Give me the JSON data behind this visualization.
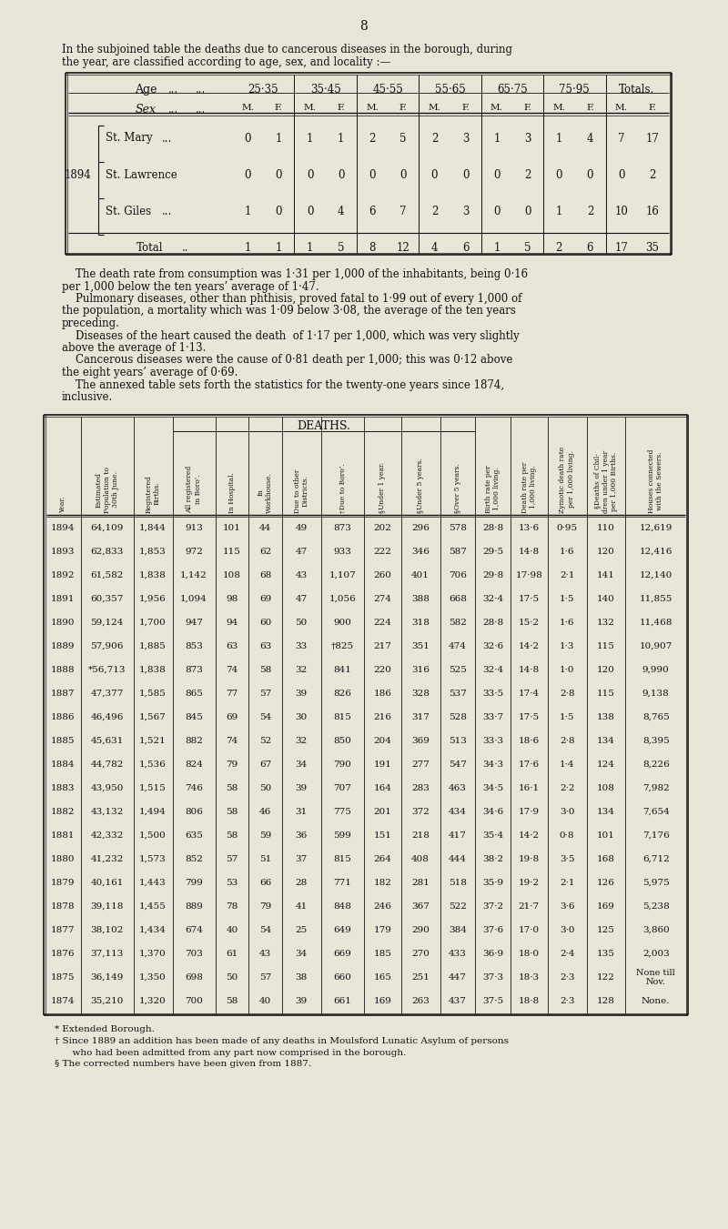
{
  "bg_color": "#e9e5d8",
  "page_number": "8",
  "intro_text_line1": "In the subjoined table the deaths due to cancerous diseases in the borough, during",
  "intro_text_line2": "the year, are classified according to age, sex, and locality :—",
  "cancer_table": {
    "age_headers": [
      "25·35",
      "35·45",
      "45·55",
      "55·65",
      "65·75",
      "75·95",
      "Totals."
    ],
    "year_label": "1894",
    "rows": [
      {
        "locality": "St. Mary",
        "dots": "...",
        "values": [
          "0",
          "1",
          "1",
          "1",
          "2",
          "5",
          "2",
          "3",
          "1",
          "3",
          "1",
          "4",
          "7",
          "17"
        ]
      },
      {
        "locality": "St. Lawrence",
        "dots": "",
        "values": [
          "0",
          "0",
          "0",
          "0",
          "0",
          "0",
          "0",
          "0",
          "0",
          "2",
          "0",
          "0",
          "0",
          "2"
        ]
      },
      {
        "locality": "St. Giles",
        "dots": "...",
        "values": [
          "1",
          "0",
          "0",
          "4",
          "6",
          "7",
          "2",
          "3",
          "0",
          "0",
          "1",
          "2",
          "10",
          "16"
        ]
      }
    ],
    "total_row": {
      "label": "Total",
      "dots": "..",
      "values": [
        "1",
        "1",
        "1",
        "5",
        "8",
        "12",
        "4",
        "6",
        "1",
        "5",
        "2",
        "6",
        "17",
        "35"
      ]
    }
  },
  "paragraph_texts": [
    "    The death rate from consumption was 1·31 per 1,000 of the inhabitants, being 0·16",
    "per 1,000 below the ten years’ average of 1·47.",
    "    Pulmonary diseases, other than phthisis, proved fatal to 1·99 out of every 1,000 of",
    "the population, a mortality which was 1·09 below 3·08, the average of the ten years",
    "preceding.",
    "    Diseases of the heart caused the death  of 1·17 per 1,000, which was very slightly",
    "above the average of 1·13.",
    "    Cancerous diseases were the cause of 0·81 death per 1,000; this was 0·12 above",
    "the eight years’ average of 0·69.",
    "    The annexed table sets forth the statistics for the twenty-one years since 1874,",
    "inclusive."
  ],
  "main_table_col_headers": [
    "Year.",
    "Estimated\nPopulation to\n30th June.",
    "Registered\nBirths.",
    "All registered\nin Boro’.",
    "In Hospital.",
    "In\nWorkhouse.",
    "Due to other\nDistricts.",
    "†Due to Boro’.",
    "§Under 1 year.",
    "§Under 5 years.",
    "§Over 5 years.",
    "Birth rate per\n1,000 living.",
    "Death rate per\n1,000 living.",
    "Zymotic death rate\nper 1,000 living.",
    "§Deaths of Chil-\ndren under 1 year\nper 1,000 Births.",
    "Houses connected\nwith the Sewers."
  ],
  "main_table_data": [
    [
      "1894",
      "64,109",
      "1,844",
      "913",
      "101",
      "44",
      "49",
      "873",
      "202",
      "296",
      "578",
      "28·8",
      "13·6",
      "0·95",
      "110",
      "12,619"
    ],
    [
      "1893",
      "62,833",
      "1,853",
      "972",
      "115",
      "62",
      "47",
      "933",
      "222",
      "346",
      "587",
      "29·5",
      "14·8",
      "1·6",
      "120",
      "12,416"
    ],
    [
      "1892",
      "61,582",
      "1,838",
      "1,142",
      "108",
      "68",
      "43",
      "1,107",
      "260",
      "401",
      "706",
      "29·8",
      "17·98",
      "2·1",
      "141",
      "12,140"
    ],
    [
      "1891",
      "60,357",
      "1,956",
      "1,094",
      "98",
      "69",
      "47",
      "1,056",
      "274",
      "388",
      "668",
      "32·4",
      "17·5",
      "1·5",
      "140",
      "11,855"
    ],
    [
      "1890",
      "59,124",
      "1,700",
      "947",
      "94",
      "60",
      "50",
      "900",
      "224",
      "318",
      "582",
      "28·8",
      "15·2",
      "1·6",
      "132",
      "11,468"
    ],
    [
      "1889",
      "57,906",
      "1,885",
      "853",
      "63",
      "63",
      "33",
      "†825",
      "217",
      "351",
      "474",
      "32·6",
      "14·2",
      "1·3",
      "115",
      "10,907"
    ],
    [
      "1888",
      "*56,713",
      "1,838",
      "873",
      "74",
      "58",
      "32",
      "841",
      "220",
      "316",
      "525",
      "32·4",
      "14·8",
      "1·0",
      "120",
      "9,990"
    ],
    [
      "1887",
      "47,377",
      "1,585",
      "865",
      "77",
      "57",
      "39",
      "826",
      "186",
      "328",
      "537",
      "33·5",
      "17·4",
      "2·8",
      "115",
      "9,138"
    ],
    [
      "1886",
      "46,496",
      "1,567",
      "845",
      "69",
      "54",
      "30",
      "815",
      "216",
      "317",
      "528",
      "33·7",
      "17·5",
      "1·5",
      "138",
      "8,765"
    ],
    [
      "1885",
      "45,631",
      "1,521",
      "882",
      "74",
      "52",
      "32",
      "850",
      "204",
      "369",
      "513",
      "33·3",
      "18·6",
      "2·8",
      "134",
      "8,395"
    ],
    [
      "1884",
      "44,782",
      "1,536",
      "824",
      "79",
      "67",
      "34",
      "790",
      "191",
      "277",
      "547",
      "34·3",
      "17·6",
      "1·4",
      "124",
      "8,226"
    ],
    [
      "1883",
      "43,950",
      "1,515",
      "746",
      "58",
      "50",
      "39",
      "707",
      "164",
      "283",
      "463",
      "34·5",
      "16·1",
      "2·2",
      "108",
      "7,982"
    ],
    [
      "1882",
      "43,132",
      "1,494",
      "806",
      "58",
      "46",
      "31",
      "775",
      "201",
      "372",
      "434",
      "34·6",
      "17·9",
      "3·0",
      "134",
      "7,654"
    ],
    [
      "1881",
      "42,332",
      "1,500",
      "635",
      "58",
      "59",
      "36",
      "599",
      "151",
      "218",
      "417",
      "35·4",
      "14·2",
      "0·8",
      "101",
      "7,176"
    ],
    [
      "1880",
      "41,232",
      "1,573",
      "852",
      "57",
      "51",
      "37",
      "815",
      "264",
      "408",
      "444",
      "38·2",
      "19·8",
      "3·5",
      "168",
      "6,712"
    ],
    [
      "1879",
      "40,161",
      "1,443",
      "799",
      "53",
      "66",
      "28",
      "771",
      "182",
      "281",
      "518",
      "35·9",
      "19·2",
      "2·1",
      "126",
      "5,975"
    ],
    [
      "1878",
      "39,118",
      "1,455",
      "889",
      "78",
      "79",
      "41",
      "848",
      "246",
      "367",
      "522",
      "37·2",
      "21·7",
      "3·6",
      "169",
      "5,238"
    ],
    [
      "1877",
      "38,102",
      "1,434",
      "674",
      "40",
      "54",
      "25",
      "649",
      "179",
      "290",
      "384",
      "37·6",
      "17·0",
      "3·0",
      "125",
      "3,860"
    ],
    [
      "1876",
      "37,113",
      "1,370",
      "703",
      "61",
      "43",
      "34",
      "669",
      "185",
      "270",
      "433",
      "36·9",
      "18·0",
      "2·4",
      "135",
      "2,003"
    ],
    [
      "1875",
      "36,149",
      "1,350",
      "698",
      "50",
      "57",
      "38",
      "660",
      "165",
      "251",
      "447",
      "37·3",
      "18·3",
      "2·3",
      "122",
      "None till\nNov."
    ],
    [
      "1874",
      "35,210",
      "1,320",
      "700",
      "58",
      "40",
      "39",
      "661",
      "169",
      "263",
      "437",
      "37·5",
      "18·8",
      "2·3",
      "128",
      "None."
    ]
  ],
  "footnotes": [
    "* Extended Borough.",
    "† Since 1889 an addition has been made of any deaths in Moulsford Lunatic Asylum of persons",
    "      who had been admitted from any part now comprised in the borough.",
    "§ The corrected numbers have been given from 1887."
  ]
}
